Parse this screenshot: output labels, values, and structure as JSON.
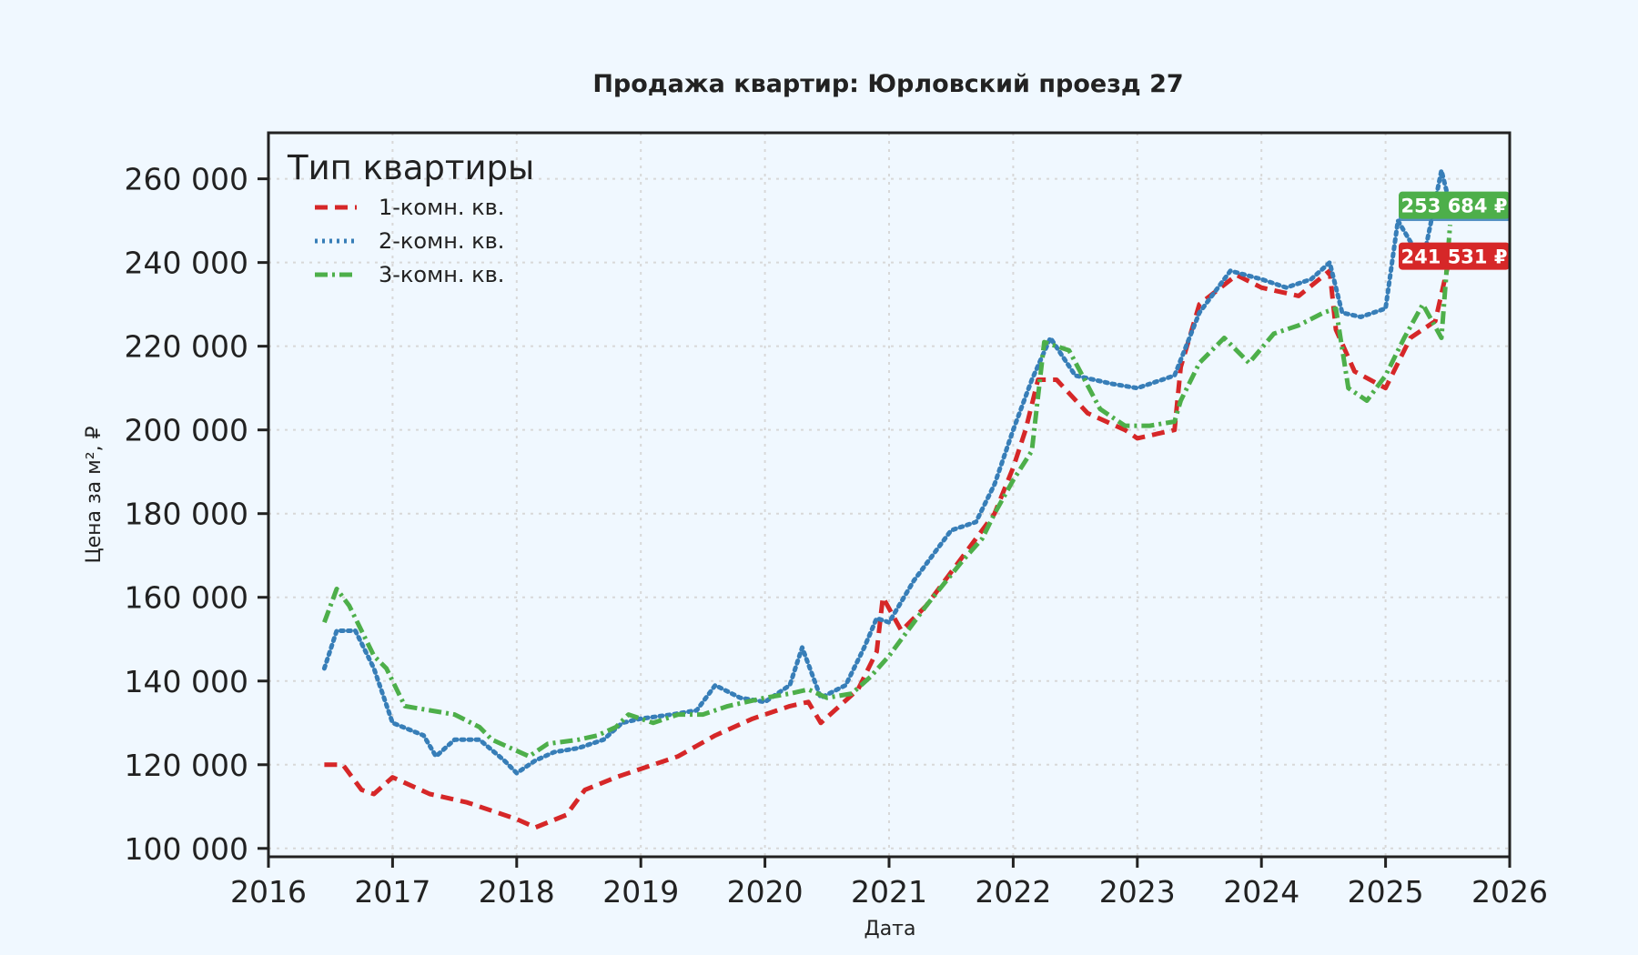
{
  "chart_data": {
    "type": "line",
    "title": "Продажа квартир: Юрловский проезд 27",
    "xlabel": "Дата",
    "ylabel": "Цена за м², ₽",
    "xlim": [
      2016.0,
      2026.0
    ],
    "ylim": [
      98000,
      271000
    ],
    "x_ticks": [
      2016,
      2017,
      2018,
      2019,
      2020,
      2021,
      2022,
      2023,
      2024,
      2025,
      2026
    ],
    "y_ticks": [
      100000,
      120000,
      140000,
      160000,
      180000,
      200000,
      220000,
      240000,
      260000
    ],
    "y_tick_labels": [
      "100 000",
      "120 000",
      "140 000",
      "160 000",
      "180 000",
      "200 000",
      "220 000",
      "240 000",
      "260 000"
    ],
    "grid": true,
    "legend": {
      "title": "Тип квартиры",
      "placement": "top-left"
    },
    "series": [
      {
        "name": "1-комн. кв.",
        "color": "#d62728",
        "style": "dashed",
        "x": [
          2016.45,
          2016.6,
          2016.75,
          2016.85,
          2017.0,
          2017.3,
          2017.6,
          2017.8,
          2018.0,
          2018.15,
          2018.4,
          2018.55,
          2018.8,
          2019.0,
          2019.3,
          2019.6,
          2019.9,
          2020.2,
          2020.35,
          2020.45,
          2020.6,
          2020.75,
          2020.9,
          2020.95,
          2021.1,
          2021.3,
          2021.6,
          2021.85,
          2022.0,
          2022.1,
          2022.2,
          2022.35,
          2022.6,
          2022.9,
          2023.0,
          2023.3,
          2023.35,
          2023.5,
          2023.8,
          2024.0,
          2024.3,
          2024.55,
          2024.6,
          2024.75,
          2025.0,
          2025.2,
          2025.4,
          2025.52
        ],
        "y": [
          120000,
          120000,
          114000,
          113000,
          117000,
          113000,
          111000,
          109000,
          107000,
          105000,
          108000,
          114000,
          117000,
          119000,
          122000,
          127000,
          131000,
          134000,
          135000,
          130000,
          134000,
          138000,
          147000,
          160000,
          152000,
          158000,
          170000,
          180000,
          191000,
          200000,
          212000,
          212000,
          204000,
          200000,
          198000,
          200000,
          215000,
          230000,
          237000,
          234000,
          232000,
          238000,
          224000,
          214000,
          210000,
          222000,
          226000,
          241531
        ]
      },
      {
        "name": "2-комн. кв.",
        "color": "#377eb8",
        "style": "dotted",
        "x": [
          2016.45,
          2016.55,
          2016.7,
          2016.85,
          2017.0,
          2017.25,
          2017.35,
          2017.5,
          2017.7,
          2017.9,
          2018.0,
          2018.15,
          2018.3,
          2018.5,
          2018.7,
          2018.85,
          2019.0,
          2019.25,
          2019.45,
          2019.6,
          2019.8,
          2020.0,
          2020.2,
          2020.3,
          2020.45,
          2020.65,
          2020.8,
          2020.9,
          2021.0,
          2021.2,
          2021.5,
          2021.7,
          2021.85,
          2022.0,
          2022.15,
          2022.3,
          2022.5,
          2022.8,
          2023.0,
          2023.3,
          2023.5,
          2023.75,
          2024.0,
          2024.2,
          2024.4,
          2024.55,
          2024.65,
          2024.8,
          2025.0,
          2025.1,
          2025.3,
          2025.45,
          2025.52
        ],
        "y": [
          143000,
          152000,
          152000,
          143000,
          130000,
          127000,
          122000,
          126000,
          126000,
          121000,
          118000,
          121000,
          123000,
          124000,
          126000,
          130000,
          131000,
          132000,
          133000,
          139000,
          136000,
          135000,
          139000,
          148000,
          136000,
          139000,
          148000,
          155000,
          154000,
          164000,
          176000,
          178000,
          187000,
          200000,
          212000,
          222000,
          213000,
          211000,
          210000,
          213000,
          228000,
          238000,
          236000,
          234000,
          236000,
          240000,
          228000,
          227000,
          229000,
          250000,
          240000,
          262000,
          253684
        ]
      },
      {
        "name": "3-комн. кв.",
        "color": "#4daf4a",
        "style": "dashdot",
        "x": [
          2016.45,
          2016.55,
          2016.65,
          2016.75,
          2016.85,
          2016.95,
          2017.1,
          2017.3,
          2017.5,
          2017.7,
          2017.8,
          2017.95,
          2018.1,
          2018.25,
          2018.5,
          2018.65,
          2018.8,
          2018.9,
          2019.1,
          2019.3,
          2019.5,
          2019.7,
          2019.85,
          2020.0,
          2020.2,
          2020.35,
          2020.5,
          2020.7,
          2020.85,
          2021.0,
          2021.3,
          2021.6,
          2021.75,
          2021.85,
          2022.0,
          2022.15,
          2022.25,
          2022.45,
          2022.7,
          2022.9,
          2023.1,
          2023.3,
          2023.35,
          2023.5,
          2023.7,
          2023.9,
          2024.1,
          2024.3,
          2024.5,
          2024.6,
          2024.7,
          2024.85,
          2025.0,
          2025.15,
          2025.3,
          2025.45,
          2025.52
        ],
        "y": [
          154000,
          162000,
          158000,
          152000,
          146000,
          143000,
          134000,
          133000,
          132000,
          129000,
          126000,
          124000,
          122000,
          125000,
          126000,
          127000,
          129000,
          132000,
          130000,
          132000,
          132000,
          134000,
          135000,
          136000,
          137000,
          138000,
          136000,
          137000,
          141000,
          146000,
          158000,
          169000,
          174000,
          180000,
          188000,
          195000,
          221000,
          219000,
          205000,
          201000,
          201000,
          202000,
          207000,
          216000,
          222000,
          216000,
          223000,
          225000,
          228000,
          229000,
          210000,
          207000,
          213000,
          222000,
          230000,
          222000,
          249000
        ]
      }
    ],
    "end_labels": [
      {
        "text": "253 684 ₽",
        "series": 1,
        "value": 253684,
        "color": "#4daf4a"
      },
      {
        "text": "241 531 ₽",
        "series": 0,
        "value": 241531,
        "color": "#d62728"
      }
    ]
  }
}
